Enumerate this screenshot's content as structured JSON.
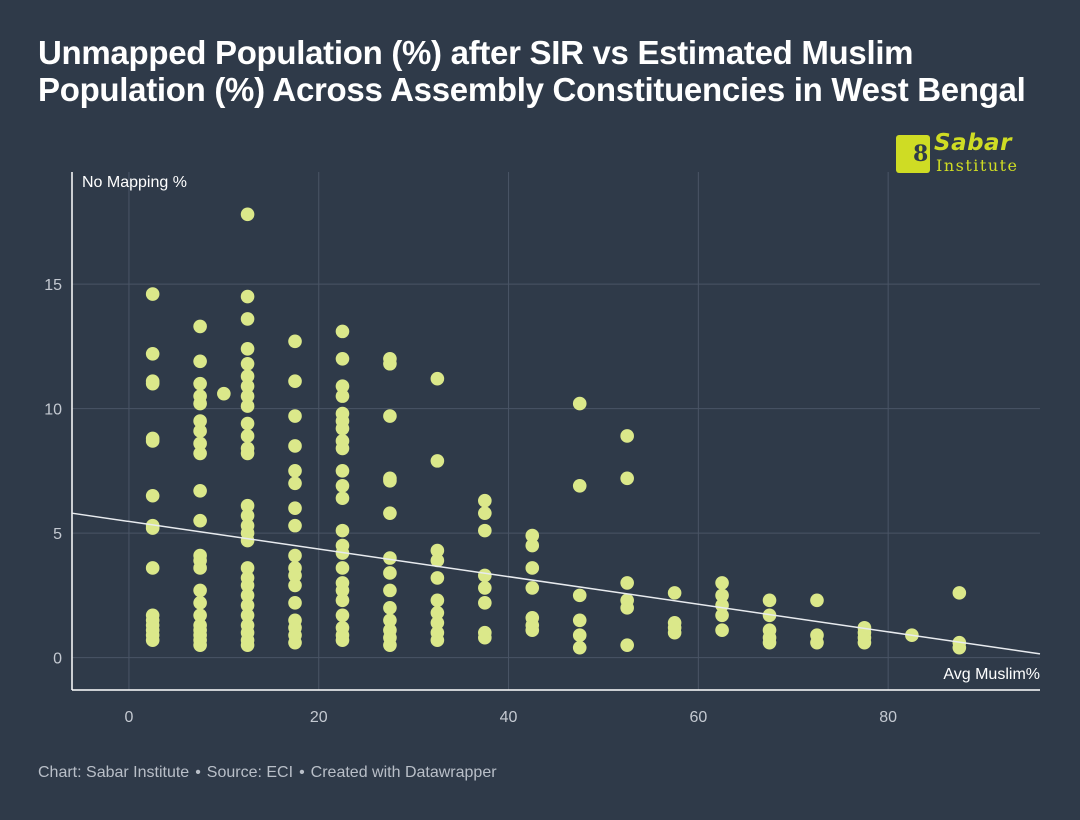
{
  "title": "Unmapped Population (%) after SIR vs Estimated Muslim Population (%) Across Assembly Constituencies in West Bengal",
  "logo": {
    "line1": "Sabar",
    "line2": "Institute"
  },
  "footer": {
    "credit": "Chart: Sabar Institute",
    "source": "Source: ECI",
    "tool": "Created with Datawrapper",
    "separator": "•"
  },
  "colors": {
    "background": "#2f3a49",
    "point": "#dbe88a",
    "trendline": "#e8ebef",
    "grid": "#4a5566",
    "axis": "#ffffff",
    "tick_text": "#c4c9d1",
    "logo": "#cfdc24"
  },
  "chart_data": {
    "type": "scatter",
    "title": "Unmapped Population (%) after SIR vs Estimated Muslim Population (%) Across Assembly Constituencies in West Bengal",
    "xlabel": "Avg Muslim%",
    "ylabel": "No Mapping %",
    "xlim": [
      -6,
      96
    ],
    "ylim": [
      -1.3,
      19.5
    ],
    "x_ticks": [
      0,
      20,
      40,
      60,
      80
    ],
    "y_ticks": [
      0,
      5,
      10,
      15
    ],
    "grid": true,
    "trendline": {
      "x": [
        -6,
        96
      ],
      "y": [
        5.8,
        0.15
      ]
    },
    "series": [
      {
        "points": [
          [
            2.5,
            14.6
          ],
          [
            2.5,
            12.2
          ],
          [
            2.5,
            11.1
          ],
          [
            2.5,
            11.0
          ],
          [
            2.5,
            8.8
          ],
          [
            2.5,
            8.7
          ],
          [
            2.5,
            6.5
          ],
          [
            2.5,
            5.3
          ],
          [
            2.5,
            5.2
          ],
          [
            2.5,
            3.6
          ],
          [
            2.5,
            1.7
          ],
          [
            2.5,
            1.5
          ],
          [
            2.5,
            1.3
          ],
          [
            2.5,
            1.1
          ],
          [
            2.5,
            0.9
          ],
          [
            2.5,
            0.7
          ],
          [
            7.5,
            13.3
          ],
          [
            7.5,
            11.9
          ],
          [
            7.5,
            11.0
          ],
          [
            7.5,
            10.5
          ],
          [
            7.5,
            10.2
          ],
          [
            7.5,
            9.5
          ],
          [
            7.5,
            9.1
          ],
          [
            7.5,
            8.6
          ],
          [
            7.5,
            8.2
          ],
          [
            7.5,
            6.7
          ],
          [
            7.5,
            5.5
          ],
          [
            7.5,
            4.1
          ],
          [
            7.5,
            3.9
          ],
          [
            7.5,
            3.6
          ],
          [
            7.5,
            2.7
          ],
          [
            7.5,
            2.2
          ],
          [
            7.5,
            1.7
          ],
          [
            7.5,
            1.3
          ],
          [
            7.5,
            1.1
          ],
          [
            7.5,
            0.9
          ],
          [
            7.5,
            0.7
          ],
          [
            7.5,
            0.5
          ],
          [
            10.0,
            10.6
          ],
          [
            12.5,
            17.8
          ],
          [
            12.5,
            14.5
          ],
          [
            12.5,
            13.6
          ],
          [
            12.5,
            12.4
          ],
          [
            12.5,
            11.8
          ],
          [
            12.5,
            11.3
          ],
          [
            12.5,
            10.9
          ],
          [
            12.5,
            10.5
          ],
          [
            12.5,
            10.1
          ],
          [
            12.5,
            9.4
          ],
          [
            12.5,
            8.9
          ],
          [
            12.5,
            8.4
          ],
          [
            12.5,
            8.2
          ],
          [
            12.5,
            6.1
          ],
          [
            12.5,
            5.7
          ],
          [
            12.5,
            5.3
          ],
          [
            12.5,
            5.0
          ],
          [
            12.5,
            4.7
          ],
          [
            12.5,
            3.6
          ],
          [
            12.5,
            3.2
          ],
          [
            12.5,
            2.9
          ],
          [
            12.5,
            2.5
          ],
          [
            12.5,
            2.1
          ],
          [
            12.5,
            1.7
          ],
          [
            12.5,
            1.3
          ],
          [
            12.5,
            1.0
          ],
          [
            12.5,
            0.7
          ],
          [
            12.5,
            0.5
          ],
          [
            17.5,
            12.7
          ],
          [
            17.5,
            11.1
          ],
          [
            17.5,
            9.7
          ],
          [
            17.5,
            8.5
          ],
          [
            17.5,
            7.5
          ],
          [
            17.5,
            7.0
          ],
          [
            17.5,
            6.0
          ],
          [
            17.5,
            5.3
          ],
          [
            17.5,
            4.1
          ],
          [
            17.5,
            3.6
          ],
          [
            17.5,
            3.3
          ],
          [
            17.5,
            2.9
          ],
          [
            17.5,
            2.2
          ],
          [
            17.5,
            1.5
          ],
          [
            17.5,
            1.2
          ],
          [
            17.5,
            0.9
          ],
          [
            17.5,
            0.6
          ],
          [
            22.5,
            13.1
          ],
          [
            22.5,
            12.0
          ],
          [
            22.5,
            10.9
          ],
          [
            22.5,
            10.5
          ],
          [
            22.5,
            9.8
          ],
          [
            22.5,
            9.5
          ],
          [
            22.5,
            9.2
          ],
          [
            22.5,
            8.7
          ],
          [
            22.5,
            8.4
          ],
          [
            22.5,
            7.5
          ],
          [
            22.5,
            6.9
          ],
          [
            22.5,
            6.4
          ],
          [
            22.5,
            5.1
          ],
          [
            22.5,
            4.5
          ],
          [
            22.5,
            4.2
          ],
          [
            22.5,
            3.6
          ],
          [
            22.5,
            3.0
          ],
          [
            22.5,
            2.7
          ],
          [
            22.5,
            2.3
          ],
          [
            22.5,
            1.7
          ],
          [
            22.5,
            1.2
          ],
          [
            22.5,
            0.9
          ],
          [
            22.5,
            0.7
          ],
          [
            27.5,
            12.0
          ],
          [
            27.5,
            11.8
          ],
          [
            27.5,
            9.7
          ],
          [
            27.5,
            7.2
          ],
          [
            27.5,
            7.1
          ],
          [
            27.5,
            5.8
          ],
          [
            27.5,
            4.0
          ],
          [
            27.5,
            3.4
          ],
          [
            27.5,
            2.7
          ],
          [
            27.5,
            2.0
          ],
          [
            27.5,
            1.5
          ],
          [
            27.5,
            1.1
          ],
          [
            27.5,
            0.8
          ],
          [
            27.5,
            0.5
          ],
          [
            32.5,
            11.2
          ],
          [
            32.5,
            7.9
          ],
          [
            32.5,
            4.3
          ],
          [
            32.5,
            3.9
          ],
          [
            32.5,
            3.2
          ],
          [
            32.5,
            2.3
          ],
          [
            32.5,
            1.8
          ],
          [
            32.5,
            1.4
          ],
          [
            32.5,
            1.0
          ],
          [
            32.5,
            0.7
          ],
          [
            37.5,
            6.3
          ],
          [
            37.5,
            5.8
          ],
          [
            37.5,
            5.1
          ],
          [
            37.5,
            3.3
          ],
          [
            37.5,
            2.8
          ],
          [
            37.5,
            2.2
          ],
          [
            37.5,
            1.0
          ],
          [
            37.5,
            0.8
          ],
          [
            42.5,
            4.9
          ],
          [
            42.5,
            4.5
          ],
          [
            42.5,
            3.6
          ],
          [
            42.5,
            2.8
          ],
          [
            42.5,
            1.6
          ],
          [
            42.5,
            1.3
          ],
          [
            42.5,
            1.1
          ],
          [
            47.5,
            10.2
          ],
          [
            47.5,
            6.9
          ],
          [
            47.5,
            2.5
          ],
          [
            47.5,
            1.5
          ],
          [
            47.5,
            0.9
          ],
          [
            47.5,
            0.4
          ],
          [
            52.5,
            8.9
          ],
          [
            52.5,
            7.2
          ],
          [
            52.5,
            3.0
          ],
          [
            52.5,
            2.3
          ],
          [
            52.5,
            2.0
          ],
          [
            52.5,
            0.5
          ],
          [
            57.5,
            2.6
          ],
          [
            57.5,
            1.4
          ],
          [
            57.5,
            1.2
          ],
          [
            57.5,
            1.0
          ],
          [
            62.5,
            3.0
          ],
          [
            62.5,
            2.5
          ],
          [
            62.5,
            2.1
          ],
          [
            62.5,
            1.7
          ],
          [
            62.5,
            1.1
          ],
          [
            67.5,
            2.3
          ],
          [
            67.5,
            1.7
          ],
          [
            67.5,
            1.1
          ],
          [
            67.5,
            0.8
          ],
          [
            67.5,
            0.6
          ],
          [
            72.5,
            2.3
          ],
          [
            72.5,
            0.9
          ],
          [
            72.5,
            0.6
          ],
          [
            77.5,
            1.2
          ],
          [
            77.5,
            1.0
          ],
          [
            77.5,
            0.8
          ],
          [
            77.5,
            0.6
          ],
          [
            82.5,
            0.9
          ],
          [
            87.5,
            2.6
          ],
          [
            87.5,
            0.6
          ],
          [
            87.5,
            0.4
          ]
        ]
      }
    ]
  }
}
